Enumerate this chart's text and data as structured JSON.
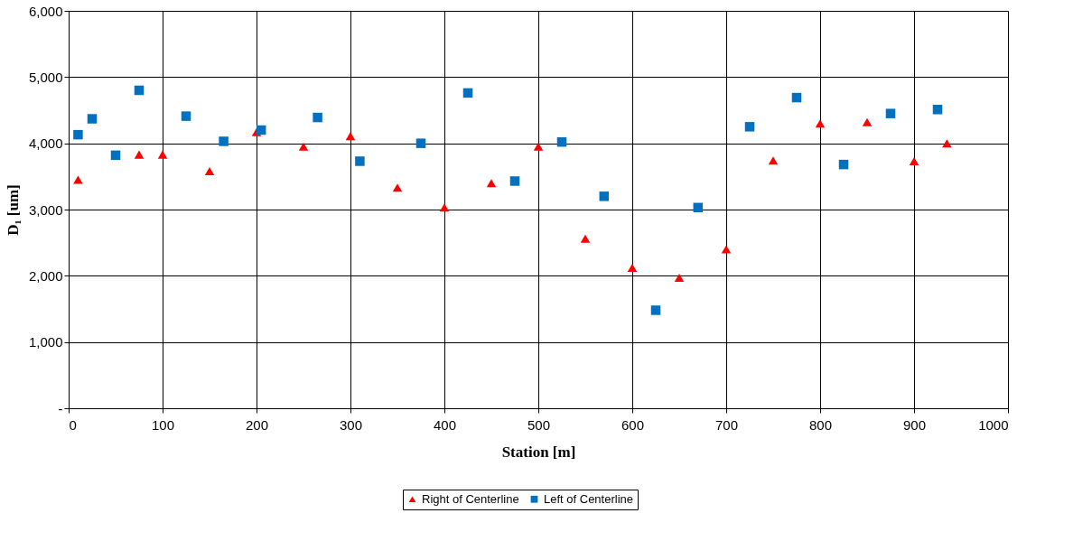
{
  "chart_data": {
    "type": "scatter",
    "xlabel": "Station [m]",
    "ylabel": "D₁ [um]",
    "xlim": [
      0,
      1000
    ],
    "xticks": [
      0,
      100,
      200,
      300,
      400,
      500,
      600,
      700,
      800,
      900,
      1000
    ],
    "ylim": [
      0,
      6000
    ],
    "yticks": [
      {
        "value": 0,
        "label": "-"
      },
      {
        "value": 1000,
        "label": "1,000"
      },
      {
        "value": 2000,
        "label": "2,000"
      },
      {
        "value": 3000,
        "label": "3,000"
      },
      {
        "value": 4000,
        "label": "4,000"
      },
      {
        "value": 5000,
        "label": "5,000"
      },
      {
        "value": 6000,
        "label": "6,000"
      }
    ],
    "grid": true,
    "legend": "bottom",
    "series": [
      {
        "name": "Right of Centerline",
        "color": "#ff0000",
        "marker": "triangle",
        "x": [
          10,
          75,
          100,
          150,
          200,
          250,
          300,
          350,
          400,
          450,
          500,
          550,
          600,
          650,
          700,
          750,
          800,
          850,
          900,
          935
        ],
        "values": [
          3450,
          3830,
          3830,
          3580,
          4170,
          3950,
          4110,
          3330,
          3030,
          3400,
          3950,
          2560,
          2120,
          1970,
          2400,
          3740,
          4300,
          4320,
          3730,
          4000
        ]
      },
      {
        "name": "Left of Centerline",
        "color": "#0070c0",
        "marker": "square",
        "x": [
          10,
          25,
          50,
          75,
          125,
          165,
          205,
          265,
          310,
          375,
          425,
          475,
          525,
          570,
          625,
          670,
          725,
          775,
          825,
          875,
          925
        ],
        "values": [
          4130,
          4370,
          3820,
          4800,
          4410,
          4030,
          4200,
          4390,
          3730,
          4000,
          4760,
          3430,
          4020,
          3200,
          1480,
          3030,
          4250,
          4690,
          3680,
          4450,
          4510
        ]
      }
    ]
  }
}
